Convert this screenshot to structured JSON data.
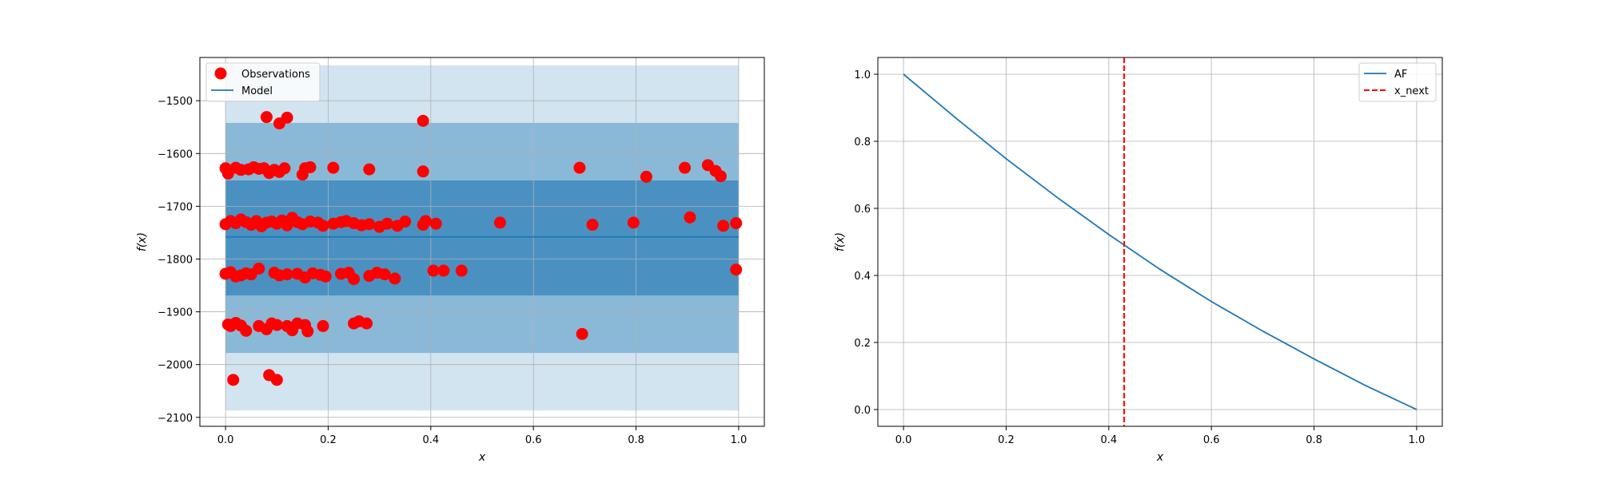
{
  "chart_data": [
    {
      "type": "scatter",
      "xlabel": "x",
      "ylabel": "f(x)",
      "xlim": [
        -0.05,
        1.05
      ],
      "ylim": [
        -2117,
        -1418
      ],
      "x_ticks": [
        0.0,
        0.2,
        0.4,
        0.6,
        0.8,
        1.0
      ],
      "x_tick_labels": [
        "0.0",
        "0.2",
        "0.4",
        "0.6",
        "0.8",
        "1.0"
      ],
      "y_ticks": [
        -1500,
        -1600,
        -1700,
        -1800,
        -1900,
        -2000,
        -2100
      ],
      "y_tick_labels": [
        "−1500",
        "−1600",
        "−1700",
        "−1800",
        "−1900",
        "−2000",
        "−2100"
      ],
      "grid": true,
      "legend": {
        "position": "top-left",
        "entries": [
          "Observations",
          "Model"
        ]
      },
      "colors": {
        "observations": "#ff0000",
        "model": "#1f77b4",
        "band": "#1f77b4"
      },
      "model": {
        "x": [
          0.0,
          1.0
        ],
        "y": [
          -1758,
          -1758
        ]
      },
      "confidence_bands": [
        {
          "lower": -2087,
          "upper": -1433,
          "opacity": 0.2
        },
        {
          "lower": -1978,
          "upper": -1542,
          "opacity": 0.4
        },
        {
          "lower": -1869,
          "upper": -1651,
          "opacity": 0.6
        }
      ],
      "series": [
        {
          "name": "Observations",
          "points": [
            [
              0.0,
              -1628
            ],
            [
              0.005,
              -1638
            ],
            [
              0.02,
              -1627
            ],
            [
              0.03,
              -1631
            ],
            [
              0.045,
              -1630
            ],
            [
              0.055,
              -1626
            ],
            [
              0.065,
              -1629
            ],
            [
              0.075,
              -1628
            ],
            [
              0.085,
              -1637
            ],
            [
              0.095,
              -1631
            ],
            [
              0.105,
              -1635
            ],
            [
              0.115,
              -1628
            ],
            [
              0.15,
              -1640
            ],
            [
              0.155,
              -1628
            ],
            [
              0.165,
              -1626
            ],
            [
              0.21,
              -1627
            ],
            [
              0.28,
              -1630
            ],
            [
              0.385,
              -1634
            ],
            [
              0.69,
              -1627
            ],
            [
              0.82,
              -1644
            ],
            [
              0.895,
              -1627
            ],
            [
              0.94,
              -1622
            ],
            [
              0.955,
              -1633
            ],
            [
              0.965,
              -1643
            ],
            [
              0.0,
              -1734
            ],
            [
              0.01,
              -1728
            ],
            [
              0.02,
              -1732
            ],
            [
              0.03,
              -1725
            ],
            [
              0.04,
              -1730
            ],
            [
              0.05,
              -1735
            ],
            [
              0.06,
              -1728
            ],
            [
              0.07,
              -1738
            ],
            [
              0.08,
              -1731
            ],
            [
              0.09,
              -1729
            ],
            [
              0.1,
              -1733
            ],
            [
              0.11,
              -1727
            ],
            [
              0.12,
              -1736
            ],
            [
              0.13,
              -1722
            ],
            [
              0.14,
              -1730
            ],
            [
              0.15,
              -1734
            ],
            [
              0.165,
              -1729
            ],
            [
              0.18,
              -1731
            ],
            [
              0.19,
              -1737
            ],
            [
              0.21,
              -1733
            ],
            [
              0.225,
              -1730
            ],
            [
              0.235,
              -1728
            ],
            [
              0.25,
              -1732
            ],
            [
              0.265,
              -1736
            ],
            [
              0.28,
              -1734
            ],
            [
              0.3,
              -1739
            ],
            [
              0.315,
              -1733
            ],
            [
              0.335,
              -1737
            ],
            [
              0.35,
              -1729
            ],
            [
              0.385,
              -1735
            ],
            [
              0.39,
              -1728
            ],
            [
              0.41,
              -1733
            ],
            [
              0.535,
              -1731
            ],
            [
              0.715,
              -1735
            ],
            [
              0.795,
              -1731
            ],
            [
              0.905,
              -1721
            ],
            [
              0.97,
              -1737
            ],
            [
              0.995,
              -1732
            ],
            [
              0.0,
              -1828
            ],
            [
              0.01,
              -1825
            ],
            [
              0.02,
              -1833
            ],
            [
              0.03,
              -1831
            ],
            [
              0.04,
              -1827
            ],
            [
              0.05,
              -1829
            ],
            [
              0.065,
              -1818
            ],
            [
              0.095,
              -1826
            ],
            [
              0.105,
              -1831
            ],
            [
              0.12,
              -1829
            ],
            [
              0.14,
              -1828
            ],
            [
              0.155,
              -1835
            ],
            [
              0.17,
              -1827
            ],
            [
              0.185,
              -1830
            ],
            [
              0.195,
              -1833
            ],
            [
              0.225,
              -1828
            ],
            [
              0.24,
              -1826
            ],
            [
              0.25,
              -1838
            ],
            [
              0.28,
              -1832
            ],
            [
              0.295,
              -1826
            ],
            [
              0.31,
              -1829
            ],
            [
              0.33,
              -1837
            ],
            [
              0.405,
              -1822
            ],
            [
              0.425,
              -1822
            ],
            [
              0.46,
              -1822
            ],
            [
              0.995,
              -1820
            ],
            [
              0.005,
              -1924
            ],
            [
              0.01,
              -1927
            ],
            [
              0.02,
              -1921
            ],
            [
              0.03,
              -1926
            ],
            [
              0.04,
              -1936
            ],
            [
              0.065,
              -1927
            ],
            [
              0.08,
              -1933
            ],
            [
              0.09,
              -1922
            ],
            [
              0.1,
              -1925
            ],
            [
              0.12,
              -1927
            ],
            [
              0.13,
              -1935
            ],
            [
              0.14,
              -1922
            ],
            [
              0.155,
              -1925
            ],
            [
              0.16,
              -1937
            ],
            [
              0.19,
              -1927
            ],
            [
              0.25,
              -1922
            ],
            [
              0.26,
              -1918
            ],
            [
              0.275,
              -1922
            ],
            [
              0.695,
              -1942
            ],
            [
              0.08,
              -1531
            ],
            [
              0.105,
              -1543
            ],
            [
              0.12,
              -1532
            ],
            [
              0.385,
              -1538
            ],
            [
              0.015,
              -2029
            ],
            [
              0.085,
              -2020
            ],
            [
              0.1,
              -2029
            ]
          ]
        }
      ]
    },
    {
      "type": "line",
      "xlabel": "x",
      "ylabel": "f(x)",
      "xlim": [
        -0.05,
        1.05
      ],
      "ylim": [
        -0.05,
        1.05
      ],
      "x_ticks": [
        0.0,
        0.2,
        0.4,
        0.6,
        0.8,
        1.0
      ],
      "x_tick_labels": [
        "0.0",
        "0.2",
        "0.4",
        "0.6",
        "0.8",
        "1.0"
      ],
      "y_ticks": [
        0.0,
        0.2,
        0.4,
        0.6,
        0.8,
        1.0
      ],
      "y_tick_labels": [
        "0.0",
        "0.2",
        "0.4",
        "0.6",
        "0.8",
        "1.0"
      ],
      "grid": true,
      "legend": {
        "position": "top-right",
        "entries": [
          "AF",
          "x_next"
        ]
      },
      "colors": {
        "af": "#1f77b4",
        "x_next": "#ff0000"
      },
      "series": [
        {
          "name": "AF",
          "x": [
            0.0,
            0.1,
            0.2,
            0.3,
            0.4,
            0.5,
            0.6,
            0.7,
            0.8,
            0.9,
            1.0
          ],
          "y": [
            1.0,
            0.872,
            0.748,
            0.632,
            0.522,
            0.418,
            0.322,
            0.234,
            0.151,
            0.072,
            0.0
          ]
        }
      ],
      "vline": {
        "name": "x_next",
        "x": 0.43,
        "style": "dashed"
      }
    }
  ]
}
